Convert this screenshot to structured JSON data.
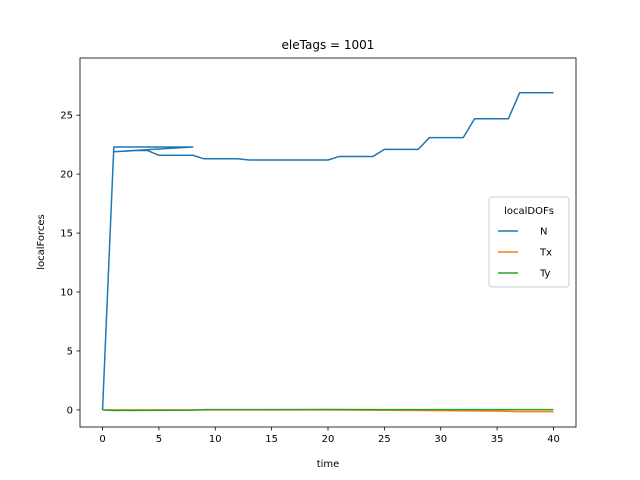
{
  "chart_data": {
    "type": "line",
    "title": "eleTags = 1001",
    "xlabel": "time",
    "ylabel": "localForces",
    "xlim": [
      -2,
      42
    ],
    "ylim": [
      -1.45,
      29.85
    ],
    "xticks": [
      0,
      5,
      10,
      15,
      20,
      25,
      30,
      35,
      40
    ],
    "yticks": [
      0,
      5,
      10,
      15,
      20,
      25
    ],
    "grid": false,
    "legend": {
      "title": "localDOFs",
      "placement": "center-right"
    },
    "series": [
      {
        "name": "N",
        "color": "#1f77b4",
        "points": [
          [
            0,
            0
          ],
          [
            1,
            22.3
          ],
          [
            2,
            22.3
          ],
          [
            3,
            22.3
          ],
          [
            4,
            22.3
          ],
          [
            5,
            22.3
          ],
          [
            6,
            22.3
          ],
          [
            7,
            22.3
          ],
          [
            8,
            22.3
          ],
          [
            1,
            21.9
          ],
          [
            2,
            21.95
          ],
          [
            3,
            22.0
          ],
          [
            4,
            22.0
          ],
          [
            5,
            21.6
          ],
          [
            6,
            21.6
          ],
          [
            7,
            21.6
          ],
          [
            8,
            21.6
          ],
          [
            9,
            21.3
          ],
          [
            10,
            21.3
          ],
          [
            11,
            21.3
          ],
          [
            12,
            21.3
          ],
          [
            13,
            21.2
          ],
          [
            14,
            21.2
          ],
          [
            15,
            21.2
          ],
          [
            16,
            21.2
          ],
          [
            17,
            21.2
          ],
          [
            18,
            21.2
          ],
          [
            19,
            21.2
          ],
          [
            20,
            21.2
          ],
          [
            21,
            21.5
          ],
          [
            22,
            21.5
          ],
          [
            23,
            21.5
          ],
          [
            24,
            21.5
          ],
          [
            25,
            22.1
          ],
          [
            26,
            22.1
          ],
          [
            27,
            22.1
          ],
          [
            28,
            22.1
          ],
          [
            29,
            23.1
          ],
          [
            30,
            23.1
          ],
          [
            31,
            23.1
          ],
          [
            32,
            23.1
          ],
          [
            33,
            24.7
          ],
          [
            34,
            24.7
          ],
          [
            35,
            24.7
          ],
          [
            36,
            24.7
          ],
          [
            37,
            26.9
          ],
          [
            38,
            26.9
          ],
          [
            39,
            26.9
          ],
          [
            40,
            26.9
          ]
        ]
      },
      {
        "name": "Tx",
        "color": "#ff7f0e",
        "points": [
          [
            0,
            0
          ],
          [
            8,
            0
          ],
          [
            20,
            0
          ],
          [
            25,
            -0.03
          ],
          [
            30,
            -0.06
          ],
          [
            35,
            -0.1
          ],
          [
            37,
            -0.15
          ],
          [
            40,
            -0.15
          ]
        ]
      },
      {
        "name": "Ty",
        "color": "#2ca02c",
        "points": [
          [
            0,
            0
          ],
          [
            1,
            -0.05
          ],
          [
            8,
            -0.02
          ],
          [
            9,
            0.02
          ],
          [
            20,
            0.03
          ],
          [
            30,
            0.02
          ],
          [
            40,
            0.02
          ]
        ]
      }
    ]
  }
}
